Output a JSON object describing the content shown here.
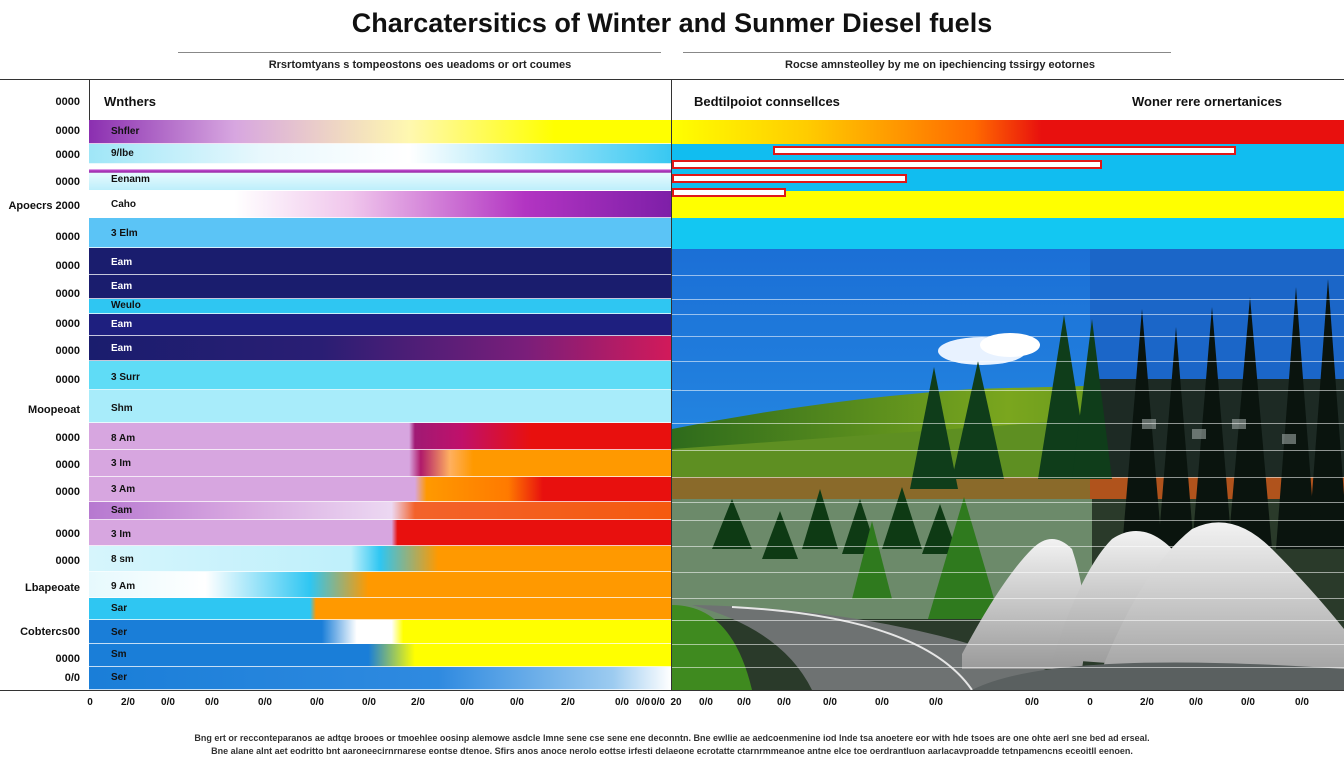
{
  "title": "Charcatersitics of Winter and Sunmer Diesel fuels",
  "subtitle_left": "Rrsrtomtyans s tompeostons oes ueadoms or ort coumes",
  "subtitle_right": "Rocse amnsteolley by me on ipechiencing tssirgy eotornes",
  "headers": {
    "left": "Wnthers",
    "middle": "Bedtilpoiot connsellces",
    "right": "Woner rere ornertanices"
  },
  "y_labels": [
    "0000",
    "0000",
    "0000",
    "0000",
    "Apoecrs 2000",
    "0000",
    "0000",
    "0000",
    "0000",
    "0000",
    "0000",
    "Moopeoat",
    "0000",
    "0000",
    "0000",
    "0000",
    "0000",
    "Lbapeoate",
    "Cobtercs00",
    "0000",
    "0/0"
  ],
  "bands": [
    {
      "label": "Shfler"
    },
    {
      "label": "9/lbe"
    },
    {
      "label": "Eenanm"
    },
    {
      "label": "Caho"
    },
    {
      "label": "3 Elm"
    },
    {
      "label": "Eam"
    },
    {
      "label": "Eam"
    },
    {
      "label": "Weulo"
    },
    {
      "label": "Eam"
    },
    {
      "label": "Eam"
    },
    {
      "label": "3 Surr"
    },
    {
      "label": "Shm"
    },
    {
      "label": "8 Am"
    },
    {
      "label": "3 Im"
    },
    {
      "label": "3 Am"
    },
    {
      "label": "Sam"
    },
    {
      "label": "3 Im"
    },
    {
      "label": "8 sm"
    },
    {
      "label": "9 Am"
    },
    {
      "label": "Sar"
    },
    {
      "label": "Ser"
    },
    {
      "label": "Sm"
    },
    {
      "label": "Ser"
    }
  ],
  "x_ticks_left": [
    "0",
    "2/0",
    "0/0",
    "0/0",
    "0/0",
    "0/0",
    "0/0",
    "2/0",
    "0/0",
    "0/0",
    "2/0",
    "0/0",
    "0/0",
    "0/0"
  ],
  "x_ticks_right": [
    "20",
    "0/0",
    "0/0",
    "0/0",
    "0/0",
    "0/0",
    "0/0",
    "0/0",
    "0",
    "2/0",
    "0/0",
    "0/0",
    "0/0"
  ],
  "footnotes": [
    "Bng ert or recconteparanos ae adtqe brooes or tmoehlee oosinp alemowe asdcle lmne sene cse sene ene deconntn. Bne ewllie ae aedcoenmenine iod lnde tsa anoetere eor with hde tsoes are one ohte aerl sne bed ad erseal.",
    "Bne alane alnt aet eodritto bnt aaroneecirnrnarese eontse dtenoe. Sfirs anos anoce nerolo eottse irfesti delaeone ecrotatte ctarnrmmeanoe antne elce toe oerdrantluon aarlacavproadde tetnpamencns eceoitll eenoen."
  ],
  "chart_data": {
    "type": "table",
    "title": "Charcatersitics of Winter and Sunmer Diesel fuels",
    "rows": [
      "Shfler",
      "9/lbe",
      "Eenanm",
      "Caho",
      "3 Elm",
      "Eam",
      "Eam",
      "Weulo",
      "Eam",
      "Eam",
      "3 Surr",
      "Shm",
      "8 Am",
      "3 Im",
      "3 Am",
      "Sam",
      "3 Im",
      "8 sm",
      "9 Am",
      "Sar",
      "Ser",
      "Sm",
      "Ser"
    ],
    "columns": [
      "Wnthers",
      "Bedtilpoiot connsellces",
      "Woner rere ornertanices"
    ],
    "bars": [
      {
        "row": "9/lbe",
        "start": 30,
        "end": 168
      },
      {
        "row": "Eenanm",
        "start": 0,
        "end": 128
      },
      {
        "row": "Caho",
        "start": 0,
        "end": 70
      },
      {
        "row": "3 Elm",
        "start": 0,
        "end": 34
      }
    ],
    "bar_range": [
      0,
      200
    ],
    "colors": {
      "purple": "#7e1fa8",
      "navy": "#1a1d6e",
      "sky": "#2fc6f2",
      "yellow": "#ffff00",
      "orange": "#ff9900",
      "red": "#e8100e",
      "lavender": "#d7a6e0",
      "blue": "#1a7ed8"
    },
    "grid": true
  }
}
